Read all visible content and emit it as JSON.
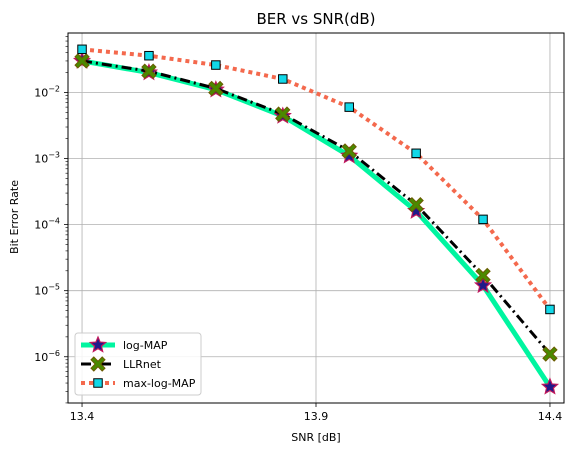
{
  "chart_data": {
    "type": "line",
    "title": "BER vs SNR(dB)",
    "xlabel": "SNR [dB]",
    "ylabel": "Bit Error Rate",
    "xlim": [
      13.37,
      14.43
    ],
    "ylim_log10": [
      -6.7,
      -1.1
    ],
    "yscale": "log",
    "grid": true,
    "legend_position": "lower-left",
    "x_ticks": [
      {
        "value": 13.4,
        "label": "13.4"
      },
      {
        "value": 13.9,
        "label": "13.9"
      },
      {
        "value": 14.4,
        "label": "14.4"
      }
    ],
    "y_ticks": [
      {
        "exp": -2,
        "base": "10",
        "sup": "−2"
      },
      {
        "exp": -3,
        "base": "10",
        "sup": "−3"
      },
      {
        "exp": -4,
        "base": "10",
        "sup": "−4"
      },
      {
        "exp": -5,
        "base": "10",
        "sup": "−5"
      },
      {
        "exp": -6,
        "base": "10",
        "sup": "−6"
      }
    ],
    "x": [
      13.4,
      13.543,
      13.686,
      13.829,
      13.971,
      14.114,
      14.257,
      14.4
    ],
    "series": [
      {
        "name": "log-MAP",
        "color": "#00f5a0",
        "line_style": "solid",
        "marker": "star",
        "marker_face": "#1f1a8a",
        "marker_edge": "#c2185b",
        "values": [
          0.03,
          0.02,
          0.011,
          0.0044,
          0.0011,
          0.00016,
          1.2e-05,
          3.5e-07
        ]
      },
      {
        "name": "LLRnet",
        "color": "#000000",
        "line_style": "dashdot",
        "marker": "X",
        "marker_face": "#4a8a00",
        "marker_edge": "#6b5a00",
        "values": [
          0.03,
          0.021,
          0.0115,
          0.0047,
          0.0013,
          0.0002,
          1.7e-05,
          1.1e-06
        ]
      },
      {
        "name": "max-log-MAP",
        "color": "#f4694d",
        "line_style": "dotted",
        "marker": "square",
        "marker_face": "#12d8e8",
        "marker_edge": "#000000",
        "values": [
          0.045,
          0.036,
          0.026,
          0.016,
          0.006,
          0.0012,
          0.00012,
          5.2e-06
        ]
      }
    ]
  }
}
